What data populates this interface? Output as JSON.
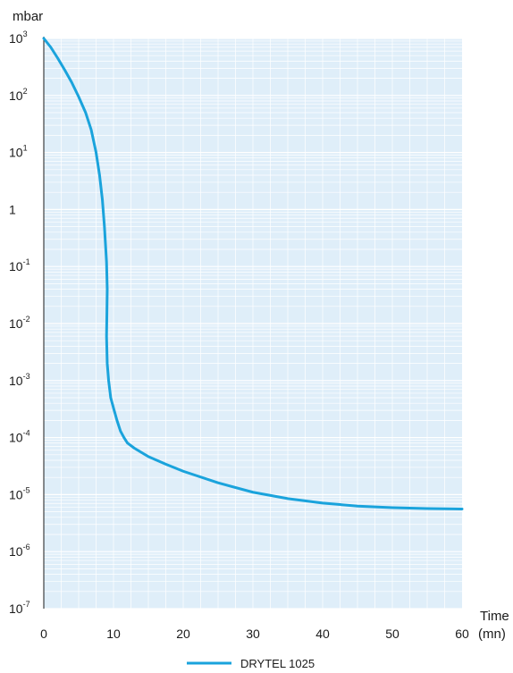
{
  "chart_data": {
    "type": "line",
    "title": "",
    "ylabel": "mbar",
    "xlabel_line1": "Time",
    "xlabel_line2": "(mn)",
    "y_scale": "log",
    "xlim": [
      0,
      60
    ],
    "ylim": [
      1e-07,
      1000
    ],
    "grid": true,
    "plot_background": "#dfeef9",
    "grid_color": "#ffffff",
    "line_color": "#1aa3dc",
    "x_ticks": [
      {
        "value": 0,
        "label": "0"
      },
      {
        "value": 10,
        "label": "10"
      },
      {
        "value": 20,
        "label": "20"
      },
      {
        "value": 30,
        "label": "30"
      },
      {
        "value": 40,
        "label": "40"
      },
      {
        "value": 50,
        "label": "50"
      },
      {
        "value": 60,
        "label": "60"
      }
    ],
    "y_ticks": [
      {
        "value": 1000,
        "base": "10",
        "exp": "3"
      },
      {
        "value": 100,
        "base": "10",
        "exp": "2"
      },
      {
        "value": 10,
        "base": "10",
        "exp": "1"
      },
      {
        "value": 1,
        "base": "1",
        "exp": ""
      },
      {
        "value": 0.1,
        "base": "10",
        "exp": "-1"
      },
      {
        "value": 0.01,
        "base": "10",
        "exp": "-2"
      },
      {
        "value": 0.001,
        "base": "10",
        "exp": "-3"
      },
      {
        "value": 0.0001,
        "base": "10",
        "exp": "-4"
      },
      {
        "value": 1e-05,
        "base": "10",
        "exp": "-5"
      },
      {
        "value": 1e-06,
        "base": "10",
        "exp": "-6"
      },
      {
        "value": 1e-07,
        "base": "10",
        "exp": "-7"
      }
    ],
    "legend": {
      "position": "bottom-center"
    },
    "series": [
      {
        "name": "DRYTEL 1025",
        "x": [
          0,
          1,
          2,
          3,
          4,
          5,
          6,
          6.8,
          7.5,
          8,
          8.4,
          8.7,
          9,
          9.1,
          9.05,
          9.0,
          9.1,
          9.3,
          9.6,
          10,
          10.5,
          11,
          11.5,
          12,
          13,
          15,
          17.5,
          20,
          25,
          30,
          35,
          40,
          45,
          50,
          55,
          60
        ],
        "y": [
          1000,
          700,
          450,
          280,
          170,
          95,
          50,
          25,
          10,
          4,
          1.5,
          0.5,
          0.12,
          0.04,
          0.015,
          0.006,
          0.002,
          0.001,
          0.0005,
          0.00033,
          0.0002,
          0.00013,
          0.0001,
          8.03e-05,
          6.51e-05,
          4.64e-05,
          3.41e-05,
          2.57e-05,
          1.61e-05,
          1.1e-05,
          8.5e-06,
          7.1e-06,
          6.3e-06,
          5.9e-06,
          5.7e-06,
          5.6e-06
        ]
      }
    ]
  }
}
